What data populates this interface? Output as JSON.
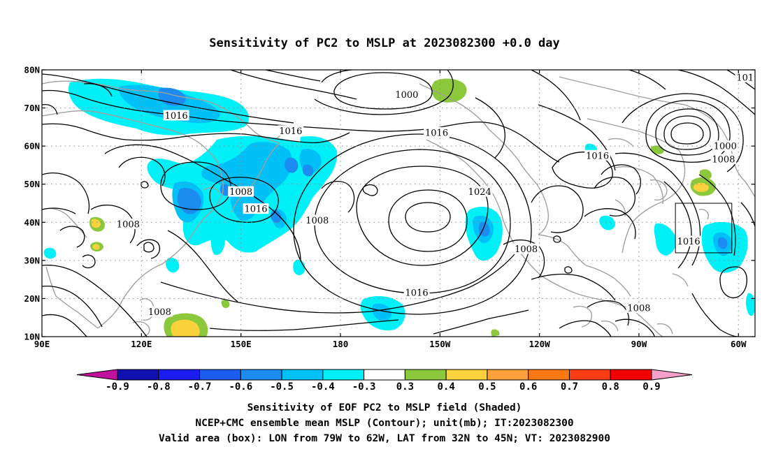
{
  "title": "Sensitivity of PC2 to MSLP at 2023082300 +0.0 day",
  "map": {
    "lon_range": [
      90,
      305
    ],
    "lat_range": [
      10,
      80
    ],
    "lat_ticks": [
      {
        "lat": 80,
        "label": "80N"
      },
      {
        "lat": 70,
        "label": "70N"
      },
      {
        "lat": 60,
        "label": "60N"
      },
      {
        "lat": 50,
        "label": "50N"
      },
      {
        "lat": 40,
        "label": "40N"
      },
      {
        "lat": 30,
        "label": "30N"
      },
      {
        "lat": 20,
        "label": "20N"
      },
      {
        "lat": 10,
        "label": "10N"
      }
    ],
    "lon_ticks": [
      {
        "lon": 90,
        "label": "90E"
      },
      {
        "lon": 120,
        "label": "120E"
      },
      {
        "lon": 150,
        "label": "150E"
      },
      {
        "lon": 180,
        "label": "180"
      },
      {
        "lon": 210,
        "label": "150W"
      },
      {
        "lon": 240,
        "label": "120W"
      },
      {
        "lon": 270,
        "label": "90W"
      },
      {
        "lon": 300,
        "label": "60W"
      }
    ],
    "grid": "dotted",
    "valid_box": {
      "lon_min": 281,
      "lon_max": 298,
      "lat_min": 32,
      "lat_max": 45
    },
    "contour_labels": [
      {
        "text": "1000",
        "lon": 200,
        "lat": 73.5
      },
      {
        "text": "101",
        "lon": 302,
        "lat": 78
      },
      {
        "text": "1016",
        "lon": 130.5,
        "lat": 68
      },
      {
        "text": "1016",
        "lon": 165,
        "lat": 64
      },
      {
        "text": "1016",
        "lon": 209,
        "lat": 63.5
      },
      {
        "text": "1000",
        "lon": 296,
        "lat": 60
      },
      {
        "text": "1016",
        "lon": 257.5,
        "lat": 57.5
      },
      {
        "text": "1008",
        "lon": 295.5,
        "lat": 56.5
      },
      {
        "text": "1008",
        "lon": 150,
        "lat": 48
      },
      {
        "text": "1024",
        "lon": 222,
        "lat": 48
      },
      {
        "text": "1016",
        "lon": 154.5,
        "lat": 43.5
      },
      {
        "text": "1008",
        "lon": 173,
        "lat": 40.5
      },
      {
        "text": "1008",
        "lon": 116,
        "lat": 39.5
      },
      {
        "text": "1016",
        "lon": 285,
        "lat": 35
      },
      {
        "text": "1008",
        "lon": 236,
        "lat": 33
      },
      {
        "text": "1016",
        "lon": 203,
        "lat": 21.5
      },
      {
        "text": "1008",
        "lon": 270,
        "lat": 17.5
      },
      {
        "text": "1008",
        "lon": 125.5,
        "lat": 16.5
      }
    ]
  },
  "colorbar": {
    "colors": [
      "#c0109c",
      "#1010b0",
      "#1c1cf0",
      "#1c5cf0",
      "#1c8cf0",
      "#00c0f8",
      "#00f0f8",
      "#ffffff",
      "#8cc83c",
      "#fcd23c",
      "#fca03c",
      "#fc7814",
      "#fc3c14",
      "#f00000",
      "#f5a0c8"
    ],
    "labels": [
      "-0.9",
      "-0.8",
      "-0.7",
      "-0.6",
      "-0.5",
      "-0.4",
      "-0.3",
      "0.3",
      "0.4",
      "0.5",
      "0.6",
      "0.7",
      "0.8",
      "0.9"
    ]
  },
  "caption": {
    "line1": "Sensitivity of EOF PC2 to MSLP field (Shaded)",
    "line2": "NCEP+CMC ensemble mean MSLP (Contour); unit(mb); IT:2023082300",
    "line3": "Valid area (box): LON from 79W to 62W, LAT from 32N to 45N; VT: 2023082900"
  },
  "colors": {
    "coast": "#a0a0a0",
    "contour": "#000000",
    "cyan": "#00f0f8",
    "lightblue": "#00c0f8",
    "blue": "#1c8cf0",
    "green": "#8cc83c",
    "yellow": "#fcd23c"
  }
}
